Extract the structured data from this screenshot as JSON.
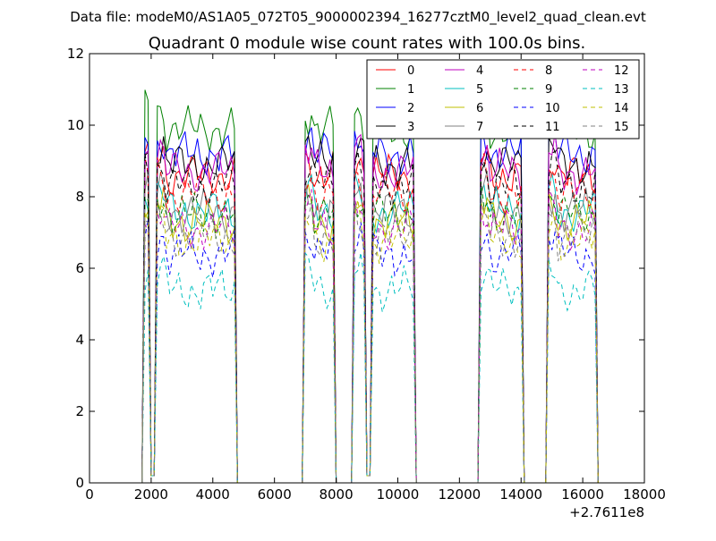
{
  "header": {
    "suptitle": "Data file: modeM0/AS1A05_072T05_9000002394_16277cztM0_level2_quad_clean.evt"
  },
  "chart_data": {
    "type": "line",
    "title": "Quadrant 0 module wise count rates with 100.0s bins.",
    "xlabel": "",
    "ylabel": "",
    "xlim": [
      0,
      18000
    ],
    "ylim": [
      0,
      12
    ],
    "x_offset_label": "+2.7611e8",
    "xticks": [
      0,
      2000,
      4000,
      6000,
      8000,
      10000,
      12000,
      14000,
      16000,
      18000
    ],
    "xtick_labels": [
      "0",
      "2000",
      "4000",
      "6000",
      "8000",
      "10000",
      "12000",
      "14000",
      "16000",
      "18000"
    ],
    "yticks": [
      0,
      2,
      4,
      6,
      8,
      10,
      12
    ],
    "ytick_labels": [
      "0",
      "2",
      "4",
      "6",
      "8",
      "10",
      "12"
    ],
    "legend_position": "top-right",
    "bin_seconds": 100,
    "segments": [
      [
        1800,
        1900
      ],
      [
        2200,
        4700
      ],
      [
        7000,
        7900
      ],
      [
        8600,
        10500
      ],
      [
        12700,
        14000
      ],
      [
        14900,
        16400
      ]
    ],
    "gap_dips": [
      [
        1950,
        2100
      ],
      [
        9000,
        9100
      ]
    ],
    "series": [
      {
        "name": "0",
        "color": "#ff0000",
        "style": "solid",
        "level": 8.6
      },
      {
        "name": "1",
        "color": "#008000",
        "style": "solid",
        "level": 9.9
      },
      {
        "name": "2",
        "color": "#0000ff",
        "style": "solid",
        "level": 9.2
      },
      {
        "name": "3",
        "color": "#000000",
        "style": "solid",
        "level": 8.9
      },
      {
        "name": "4",
        "color": "#bf00bf",
        "style": "solid",
        "level": 8.7
      },
      {
        "name": "5",
        "color": "#00bfbf",
        "style": "solid",
        "level": 7.6
      },
      {
        "name": "6",
        "color": "#bfbf00",
        "style": "solid",
        "level": 7.3
      },
      {
        "name": "7",
        "color": "#808080",
        "style": "solid",
        "level": 7.6
      },
      {
        "name": "8",
        "color": "#ff0000",
        "style": "dashed",
        "level": 8.1
      },
      {
        "name": "9",
        "color": "#008000",
        "style": "dashed",
        "level": 7.5
      },
      {
        "name": "10",
        "color": "#0000ff",
        "style": "dashed",
        "level": 6.4
      },
      {
        "name": "11",
        "color": "#000000",
        "style": "dashed",
        "level": 8.3
      },
      {
        "name": "12",
        "color": "#bf00bf",
        "style": "dashed",
        "level": 7.1
      },
      {
        "name": "13",
        "color": "#00bfbf",
        "style": "dashed",
        "level": 5.4
      },
      {
        "name": "14",
        "color": "#bfbf00",
        "style": "dashed",
        "level": 6.8
      },
      {
        "name": "15",
        "color": "#808080",
        "style": "dashed",
        "level": 6.9
      }
    ]
  }
}
